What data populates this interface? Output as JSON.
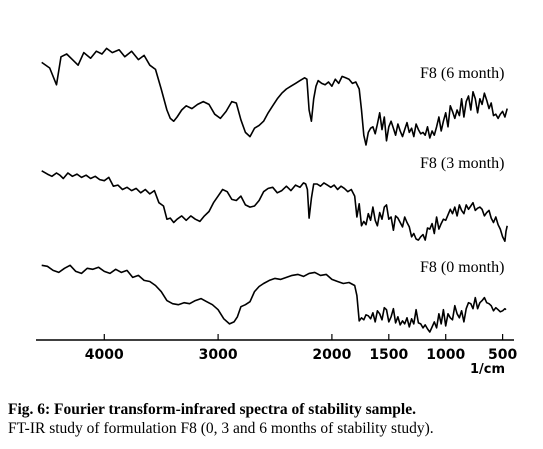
{
  "chart_data": {
    "type": "line",
    "title": "",
    "xlabel": "1/cm",
    "ylabel": "",
    "xlim": [
      4600,
      400
    ],
    "xreversed": true,
    "grid": false,
    "xticks": [
      4000,
      3000,
      2000,
      1500,
      1000,
      500
    ],
    "series": [
      {
        "name": "F8 (6 month)",
        "x": [
          4550,
          4480,
          4420,
          4380,
          4330,
          4280,
          4230,
          4180,
          4120,
          4070,
          4020,
          3980,
          3930,
          3870,
          3820,
          3760,
          3700,
          3650,
          3600,
          3550,
          3500,
          3450,
          3420,
          3390,
          3360,
          3320,
          3280,
          3230,
          3180,
          3130,
          3080,
          3030,
          2980,
          2930,
          2880,
          2840,
          2800,
          2760,
          2720,
          2680,
          2640,
          2600,
          2560,
          2520,
          2480,
          2440,
          2400,
          2360,
          2320,
          2280,
          2240,
          2220,
          2200,
          2180,
          2160,
          2140,
          2120,
          2090,
          2060,
          2030,
          2000,
          1970,
          1940,
          1910,
          1880,
          1850,
          1820,
          1790,
          1760,
          1740,
          1720,
          1700,
          1680,
          1660,
          1640,
          1620,
          1600,
          1580,
          1560,
          1540,
          1520,
          1500,
          1480,
          1460,
          1440,
          1420,
          1400,
          1380,
          1360,
          1340,
          1320,
          1300,
          1280,
          1260,
          1240,
          1220,
          1200,
          1180,
          1160,
          1140,
          1120,
          1100,
          1080,
          1060,
          1040,
          1020,
          1000,
          980,
          960,
          940,
          920,
          900,
          880,
          860,
          840,
          820,
          800,
          780,
          760,
          740,
          720,
          700,
          680,
          660,
          640,
          620,
          600,
          580,
          560,
          540,
          520,
          500,
          480,
          460
        ],
        "y": [
          64,
          60,
          48,
          68,
          70,
          66,
          62,
          71,
          67,
          72,
          70,
          74,
          71,
          73,
          68,
          72,
          66,
          69,
          62,
          59,
          45,
          30,
          24,
          22,
          25,
          30,
          33,
          31,
          34,
          36,
          34,
          27,
          24,
          29,
          36,
          35,
          23,
          14,
          11,
          17,
          19,
          22,
          28,
          33,
          38,
          42,
          45,
          47,
          49,
          51,
          53,
          52,
          30,
          22,
          38,
          47,
          51,
          49,
          48,
          50,
          47,
          52,
          49,
          54,
          53,
          52,
          49,
          50,
          45,
          30,
          12,
          5,
          14,
          17,
          18,
          13,
          20,
          28,
          16,
          25,
          8,
          18,
          22,
          17,
          12,
          20,
          15,
          11,
          16,
          21,
          14,
          17,
          11,
          20,
          16,
          13,
          14,
          12,
          18,
          10,
          15,
          12,
          18,
          25,
          15,
          22,
          28,
          18,
          33,
          29,
          24,
          30,
          26,
          38,
          25,
          36,
          40,
          30,
          43,
          38,
          28,
          38,
          34,
          42,
          37,
          31,
          35,
          26,
          27,
          24,
          27,
          29,
          25,
          31
        ]
      },
      {
        "name": "F8 (3 month)",
        "x": [
          4550,
          4500,
          4460,
          4420,
          4390,
          4360,
          4320,
          4280,
          4240,
          4200,
          4160,
          4120,
          4080,
          4040,
          4000,
          3960,
          3920,
          3880,
          3840,
          3800,
          3760,
          3720,
          3680,
          3640,
          3600,
          3560,
          3520,
          3480,
          3450,
          3420,
          3390,
          3360,
          3320,
          3280,
          3240,
          3200,
          3160,
          3120,
          3080,
          3040,
          3000,
          2960,
          2920,
          2880,
          2840,
          2800,
          2760,
          2720,
          2680,
          2640,
          2600,
          2560,
          2520,
          2480,
          2440,
          2400,
          2360,
          2320,
          2280,
          2250,
          2230,
          2215,
          2200,
          2180,
          2160,
          2130,
          2100,
          2070,
          2040,
          2010,
          1980,
          1950,
          1920,
          1890,
          1860,
          1830,
          1800,
          1780,
          1760,
          1740,
          1720,
          1700,
          1680,
          1660,
          1640,
          1620,
          1600,
          1580,
          1560,
          1540,
          1520,
          1500,
          1480,
          1460,
          1440,
          1420,
          1400,
          1380,
          1360,
          1340,
          1320,
          1300,
          1280,
          1260,
          1240,
          1220,
          1200,
          1180,
          1160,
          1140,
          1120,
          1100,
          1080,
          1060,
          1040,
          1020,
          1000,
          980,
          960,
          940,
          920,
          900,
          880,
          860,
          840,
          820,
          800,
          780,
          760,
          740,
          720,
          700,
          680,
          660,
          640,
          620,
          600,
          580,
          560,
          540,
          520,
          500,
          480,
          470,
          460
        ],
        "y": [
          72,
          69,
          67,
          70,
          68,
          65,
          70,
          67,
          69,
          66,
          68,
          65,
          67,
          64,
          63,
          66,
          58,
          59,
          55,
          57,
          54,
          56,
          52,
          55,
          51,
          54,
          43,
          40,
          28,
          29,
          25,
          28,
          31,
          27,
          31,
          28,
          26,
          31,
          35,
          43,
          49,
          55,
          53,
          46,
          45,
          49,
          41,
          39,
          40,
          45,
          53,
          56,
          57,
          52,
          54,
          58,
          54,
          59,
          57,
          61,
          60,
          55,
          29,
          47,
          60,
          60,
          58,
          61,
          59,
          57,
          59,
          55,
          58,
          56,
          53,
          55,
          49,
          30,
          42,
          22,
          26,
          23,
          33,
          27,
          39,
          27,
          22,
          34,
          28,
          39,
          41,
          28,
          30,
          18,
          31,
          29,
          25,
          21,
          30,
          25,
          21,
          12,
          15,
          10,
          9,
          12,
          14,
          9,
          20,
          19,
          24,
          15,
          30,
          19,
          24,
          28,
          27,
          32,
          37,
          33,
          39,
          31,
          41,
          36,
          33,
          41,
          37,
          40,
          43,
          36,
          38,
          39,
          37,
          31,
          34,
          36,
          29,
          25,
          30,
          23,
          19,
          12,
          8,
          17,
          22
        ]
      },
      {
        "name": "F8 (0 month)",
        "x": [
          4550,
          4500,
          4450,
          4400,
          4350,
          4300,
          4250,
          4200,
          4150,
          4100,
          4050,
          4000,
          3950,
          3900,
          3850,
          3800,
          3750,
          3700,
          3650,
          3600,
          3550,
          3500,
          3450,
          3400,
          3350,
          3300,
          3250,
          3200,
          3150,
          3100,
          3050,
          3000,
          2950,
          2900,
          2860,
          2830,
          2800,
          2760,
          2720,
          2680,
          2640,
          2600,
          2550,
          2500,
          2450,
          2400,
          2350,
          2300,
          2250,
          2200,
          2150,
          2100,
          2050,
          2000,
          1950,
          1900,
          1850,
          1800,
          1780,
          1760,
          1740,
          1720,
          1700,
          1680,
          1660,
          1640,
          1620,
          1600,
          1580,
          1560,
          1540,
          1520,
          1500,
          1480,
          1460,
          1440,
          1420,
          1400,
          1380,
          1360,
          1340,
          1320,
          1300,
          1280,
          1260,
          1240,
          1220,
          1200,
          1180,
          1160,
          1140,
          1120,
          1100,
          1080,
          1060,
          1040,
          1020,
          1000,
          980,
          960,
          940,
          920,
          900,
          880,
          860,
          840,
          820,
          800,
          780,
          760,
          740,
          720,
          700,
          680,
          660,
          640,
          620,
          600,
          580,
          560,
          540,
          520,
          500,
          480,
          470
        ],
        "y": [
          70,
          69,
          65,
          63,
          67,
          70,
          64,
          62,
          67,
          66,
          68,
          64,
          62,
          66,
          63,
          65,
          58,
          60,
          55,
          54,
          50,
          44,
          35,
          32,
          31,
          33,
          32,
          35,
          37,
          34,
          31,
          26,
          17,
          12,
          14,
          19,
          29,
          31,
          34,
          44,
          49,
          52,
          55,
          57,
          56,
          58,
          60,
          61,
          59,
          62,
          63,
          60,
          61,
          56,
          54,
          52,
          53,
          50,
          40,
          15,
          18,
          16,
          21,
          20,
          17,
          23,
          14,
          25,
          22,
          16,
          28,
          26,
          14,
          19,
          27,
          13,
          19,
          11,
          15,
          12,
          18,
          9,
          17,
          12,
          26,
          13,
          12,
          8,
          11,
          7,
          4,
          9,
          14,
          8,
          22,
          12,
          26,
          10,
          22,
          18,
          16,
          30,
          22,
          18,
          25,
          14,
          27,
          33,
          32,
          27,
          38,
          27,
          33,
          35,
          38,
          33,
          32,
          30,
          25,
          28,
          26,
          24,
          25,
          27,
          26
        ]
      }
    ]
  },
  "caption": {
    "line1": "Fig. 6: Fourier transform-infrared spectra of stability sample.",
    "line2": "FT-IR study of formulation F8 (0, 3 and 6 months of stability study)."
  }
}
